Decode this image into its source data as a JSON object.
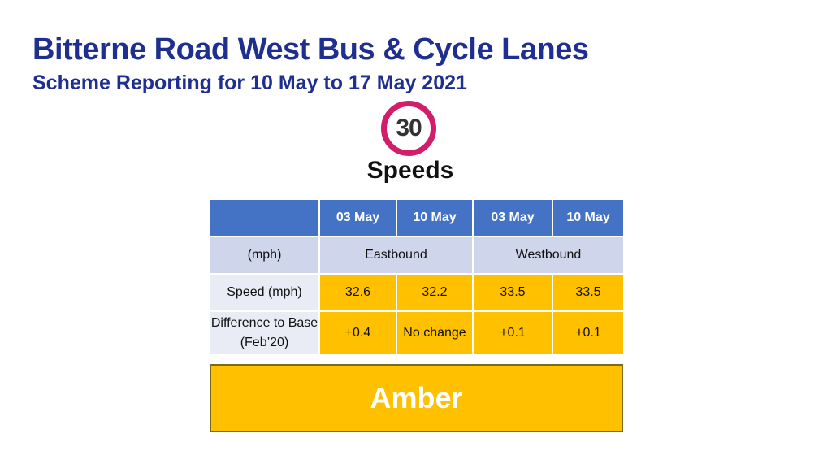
{
  "header": {
    "title": "Bitterne Road West Bus & Cycle Lanes",
    "subtitle": "Scheme Reporting for 10 May to 17 May 2021"
  },
  "speed_limit_sign": {
    "value": "30",
    "ring_color": "#d21e6a"
  },
  "section_title": "Speeds",
  "table": {
    "header_row": [
      "",
      "03 May",
      "10 May",
      "03 May",
      "10 May"
    ],
    "direction_row": {
      "label": "(mph)",
      "eastbound": "Eastbound",
      "westbound": "Westbound"
    },
    "rows": [
      {
        "label": "Speed (mph)",
        "values": [
          "32.6",
          "32.2",
          "33.5",
          "33.5"
        ]
      },
      {
        "label": "Difference to Base (Feb’20)",
        "values": [
          "+0.4",
          "No change",
          "+0.1",
          "+0.1"
        ]
      }
    ],
    "colors": {
      "header": "#4472c4",
      "subheader": "#cfd5ea",
      "label": "#e9ebf5",
      "value": "#ffc000"
    }
  },
  "status": {
    "label": "Amber",
    "color": "#ffc000"
  }
}
